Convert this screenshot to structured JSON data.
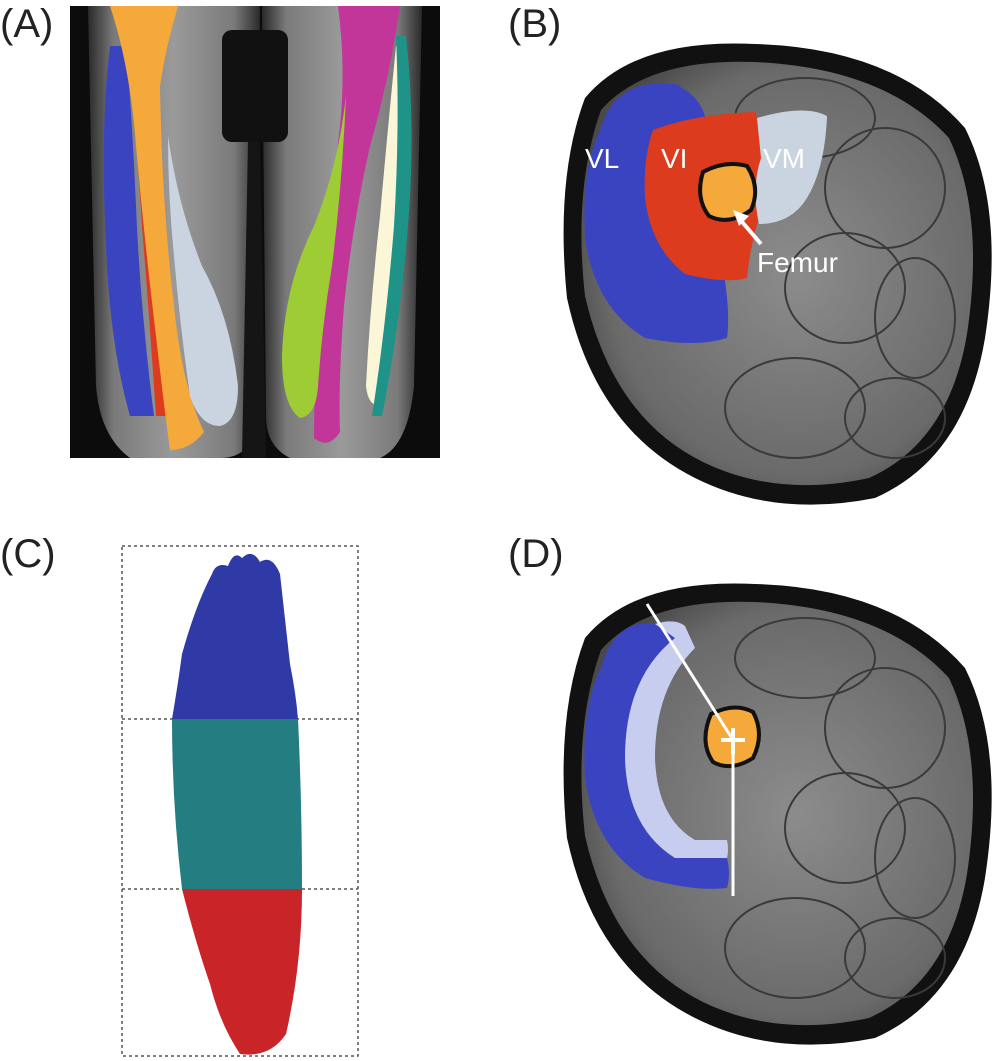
{
  "panels": {
    "a": {
      "label": "(A)"
    },
    "b": {
      "label": "(B)",
      "muscles": {
        "vl": "VL",
        "vi": "VI",
        "vm": "VM"
      },
      "bone": "Femur"
    },
    "c": {
      "label": "(C)"
    },
    "d": {
      "label": "(D)"
    }
  },
  "colors": {
    "vl_blue": "#3b44c0",
    "vi_red": "#dc3b1e",
    "vm_lightblue": "#c9d4e0",
    "femur_orange": "#f5a93a",
    "magenta": "#c2369a",
    "lime": "#9dcc35",
    "teal": "#1f9388",
    "cream": "#fbf6d8",
    "render_blue": "#2f3aa6",
    "render_teal": "#247d80",
    "render_red": "#c92428",
    "lavender": "#c7cdef"
  },
  "icons": [
    "crosshair-icon",
    "arrow-icon"
  ]
}
